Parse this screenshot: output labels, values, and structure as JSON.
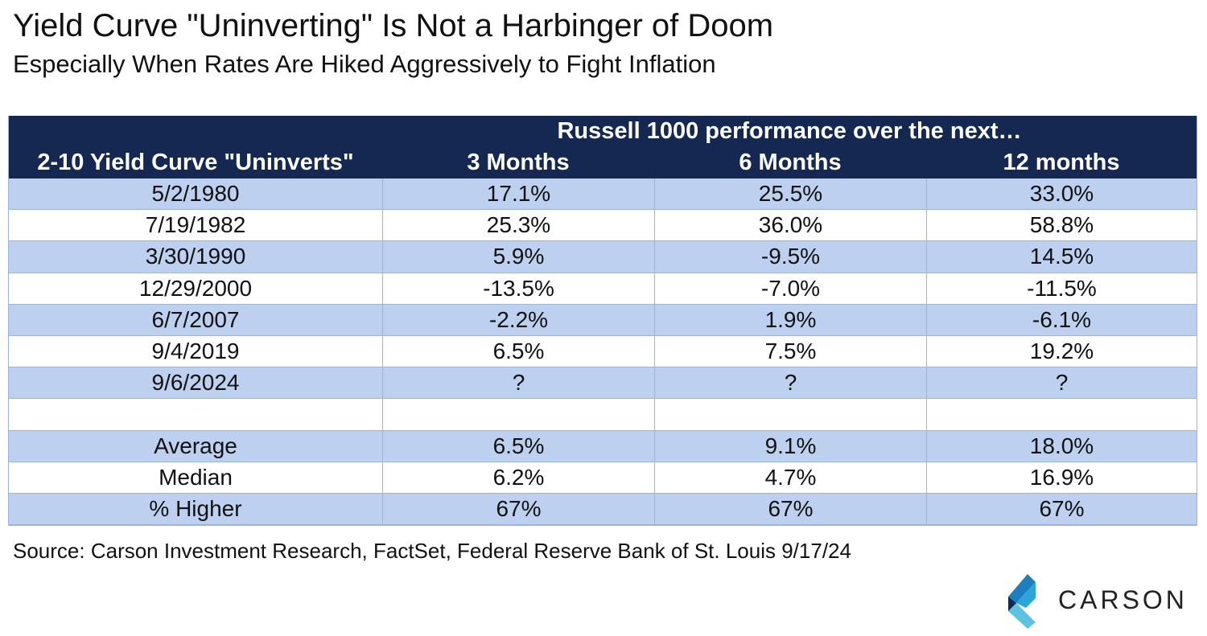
{
  "title": "Yield Curve \"Uninverting\" Is Not a Harbinger of Doom",
  "subtitle": "Especially When Rates Are Hiked Aggressively to Fight Inflation",
  "table": {
    "super_header": "Russell 1000 performance over the next…",
    "headers": [
      "2-10 Yield Curve \"Uninverts\"",
      "3 Months",
      "6 Months",
      "12 months"
    ],
    "rows": [
      [
        "5/2/1980",
        "17.1%",
        "25.5%",
        "33.0%"
      ],
      [
        "7/19/1982",
        "25.3%",
        "36.0%",
        "58.8%"
      ],
      [
        "3/30/1990",
        "5.9%",
        "-9.5%",
        "14.5%"
      ],
      [
        "12/29/2000",
        "-13.5%",
        "-7.0%",
        "-11.5%"
      ],
      [
        "6/7/2007",
        "-2.2%",
        "1.9%",
        "-6.1%"
      ],
      [
        "9/4/2019",
        "6.5%",
        "7.5%",
        "19.2%"
      ],
      [
        "9/6/2024",
        "?",
        "?",
        "?"
      ],
      [
        "",
        "",
        "",
        ""
      ],
      [
        "Average",
        "6.5%",
        "9.1%",
        "18.0%"
      ],
      [
        "Median",
        "6.2%",
        "4.7%",
        "16.9%"
      ],
      [
        "% Higher",
        "67%",
        "67%",
        "67%"
      ]
    ]
  },
  "source": "Source: Carson Investment Research, FactSet, Federal Reserve Bank of St. Louis  9/17/24",
  "logo": {
    "text": "CARSON",
    "icon": "carson-logo-icon"
  },
  "colors": {
    "header_bg": "#142852",
    "row_blue": "#bed0ef",
    "row_white": "#ffffff",
    "border": "#9db3d9"
  }
}
